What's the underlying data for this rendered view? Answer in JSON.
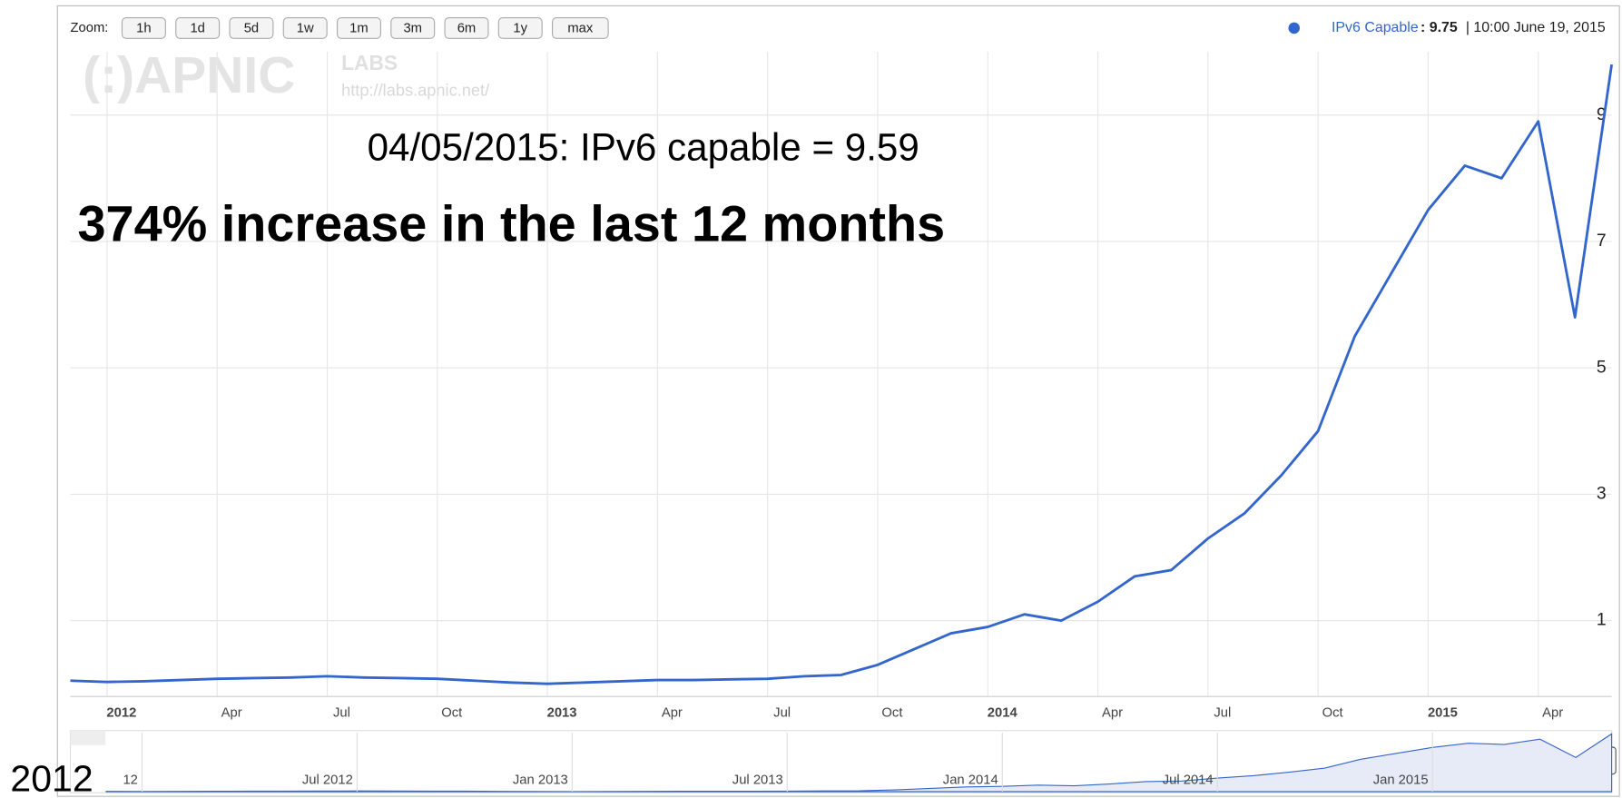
{
  "chart_data": {
    "type": "line",
    "zoom_label": "Zoom:",
    "zoom_buttons": [
      "1h",
      "1d",
      "5d",
      "1w",
      "1m",
      "3m",
      "6m",
      "1y",
      "max"
    ],
    "logo": "(:)APNIC",
    "logo_sub": "LABS",
    "logo_url": "http://labs.apnic.net/",
    "legend_readout": ": 9.75",
    "legend_time": "| 10:00 June 19, 2015",
    "annotations": [
      "04/05/2015: IPv6 capable = 9.59",
      "374% increase in the last 12 months",
      "2012"
    ],
    "x": [
      "2011-12",
      "2012-01",
      "2012-02",
      "2012-03",
      "2012-04",
      "2012-05",
      "2012-06",
      "2012-07",
      "2012-08",
      "2012-09",
      "2012-10",
      "2012-11",
      "2012-12",
      "2013-01",
      "2013-02",
      "2013-03",
      "2013-04",
      "2013-05",
      "2013-06",
      "2013-07",
      "2013-08",
      "2013-09",
      "2013-10",
      "2013-11",
      "2013-12",
      "2014-01",
      "2014-02",
      "2014-03",
      "2014-04",
      "2014-05",
      "2014-06",
      "2014-07",
      "2014-08",
      "2014-09",
      "2014-10",
      "2014-11",
      "2014-12",
      "2015-01",
      "2015-02",
      "2015-03",
      "2015-04",
      "2015-05",
      "2015-06"
    ],
    "series": [
      {
        "name": "IPv6 Capable",
        "color": "#3366cc",
        "values": [
          0.05,
          0.03,
          0.04,
          0.06,
          0.08,
          0.09,
          0.1,
          0.12,
          0.1,
          0.09,
          0.08,
          0.05,
          0.02,
          0.0,
          0.02,
          0.04,
          0.06,
          0.06,
          0.07,
          0.08,
          0.12,
          0.14,
          0.3,
          0.55,
          0.8,
          0.9,
          1.1,
          1.0,
          1.3,
          1.7,
          1.8,
          2.3,
          2.7,
          3.3,
          4.0,
          5.5,
          6.5,
          7.5,
          8.2,
          8.0,
          8.9,
          5.8,
          9.8
        ]
      }
    ],
    "xlim": [
      "2011-12",
      "2015-06"
    ],
    "xticks": [
      {
        "value": "2012-01",
        "label": "2012"
      },
      {
        "value": "2012-04",
        "label": "Apr"
      },
      {
        "value": "2012-07",
        "label": "Jul"
      },
      {
        "value": "2012-10",
        "label": "Oct"
      },
      {
        "value": "2013-01",
        "label": "2013"
      },
      {
        "value": "2013-04",
        "label": "Apr"
      },
      {
        "value": "2013-07",
        "label": "Jul"
      },
      {
        "value": "2013-10",
        "label": "Oct"
      },
      {
        "value": "2014-01",
        "label": "2014"
      },
      {
        "value": "2014-04",
        "label": "Apr"
      },
      {
        "value": "2014-07",
        "label": "Jul"
      },
      {
        "value": "2014-10",
        "label": "Oct"
      },
      {
        "value": "2015-01",
        "label": "2015"
      },
      {
        "value": "2015-04",
        "label": "Apr"
      }
    ],
    "ylim": [
      -0.2,
      10
    ],
    "yticks": [
      1,
      3,
      5,
      7,
      9
    ],
    "grid": true,
    "navigator_xlim": [
      "2011-11",
      "2015-06"
    ],
    "navigator_ylim": [
      0,
      10
    ],
    "navigator_ticks": [
      {
        "value": "2012-01",
        "label": "12"
      },
      {
        "value": "2012-07",
        "label": "Jul 2012"
      },
      {
        "value": "2013-01",
        "label": "Jan 2013"
      },
      {
        "value": "2013-07",
        "label": "Jul 2013"
      },
      {
        "value": "2014-01",
        "label": "Jan 2014"
      },
      {
        "value": "2014-07",
        "label": "Jul 2014"
      },
      {
        "value": "2015-01",
        "label": "Jan 2015"
      }
    ]
  }
}
